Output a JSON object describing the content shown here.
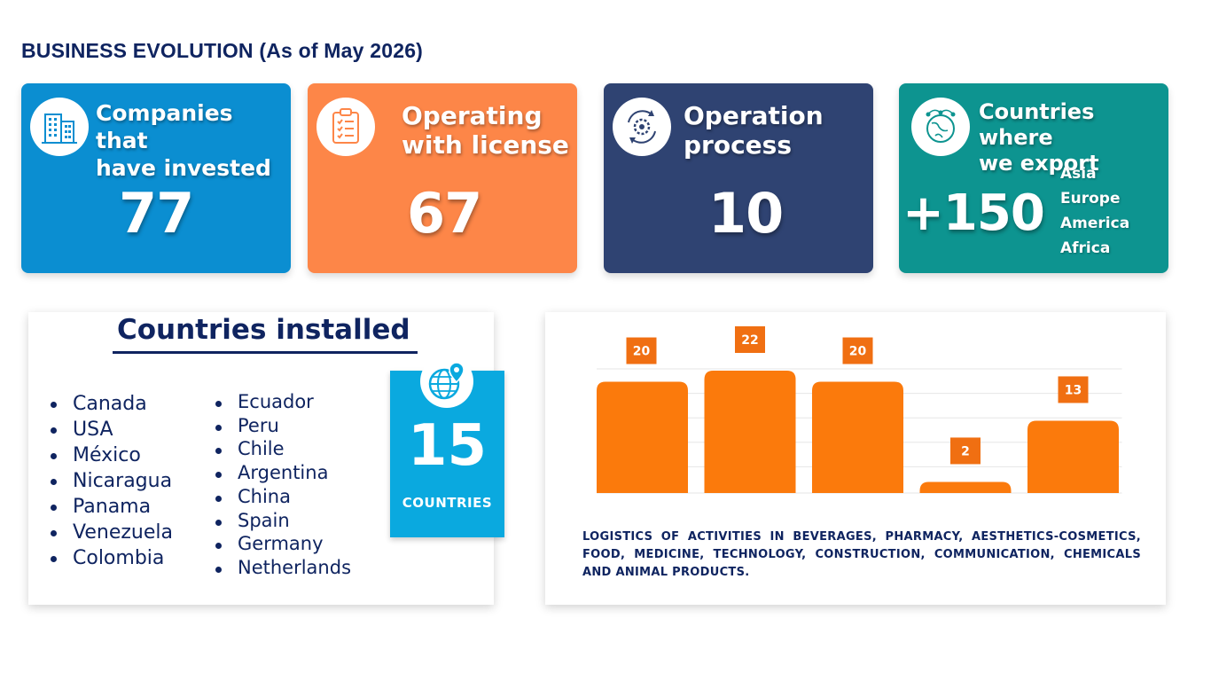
{
  "page": {
    "title": "BUSINESS EVOLUTION (As of May 2026)"
  },
  "cards": {
    "companies": {
      "label": "Companies that\nhave invested",
      "value": "77",
      "icon": "building-icon",
      "color": "#0b8ed1"
    },
    "license": {
      "label": "Operating\nwith license",
      "value": "67",
      "icon": "clipboard-checklist-icon",
      "color": "#fd8648"
    },
    "process": {
      "label": "Operation\nprocess",
      "value": "10",
      "icon": "gear-cycle-icon",
      "color": "#2f4372"
    },
    "export": {
      "label": "Countries where\nwe export",
      "value": "+150",
      "icon": "globe-network-icon",
      "color": "#0d9490",
      "regions": [
        "Asia",
        "Europe",
        "America",
        "Africa"
      ]
    }
  },
  "countries": {
    "title": "Countries installed",
    "left": [
      "Canada",
      "USA",
      "México",
      "Nicaragua",
      "Panama",
      "Venezuela",
      "Colombia"
    ],
    "right": [
      "Ecuador",
      "Peru",
      "Chile",
      "Argentina",
      "China",
      "Spain",
      "Germany",
      "Netherlands"
    ],
    "badge_value": "15",
    "badge_unit": "COUNTRIES",
    "badge_icon": "globe-pin-icon"
  },
  "chart_data": {
    "type": "bar",
    "values": [
      20,
      22,
      20,
      2,
      13
    ],
    "ylim": [
      0,
      22
    ],
    "grid": true,
    "bar_color": "#fb7a0c",
    "label_color": "#f06f12"
  },
  "chart_caption": "LOGISTICS OF ACTIVITIES IN BEVERAGES, PHARMACY, AESTHETICS-COSMETICS, FOOD, MEDICINE, TECHNOLOGY, CONSTRUCTION, COMMUNICATION, CHEMICALS AND ANIMAL PRODUCTS."
}
